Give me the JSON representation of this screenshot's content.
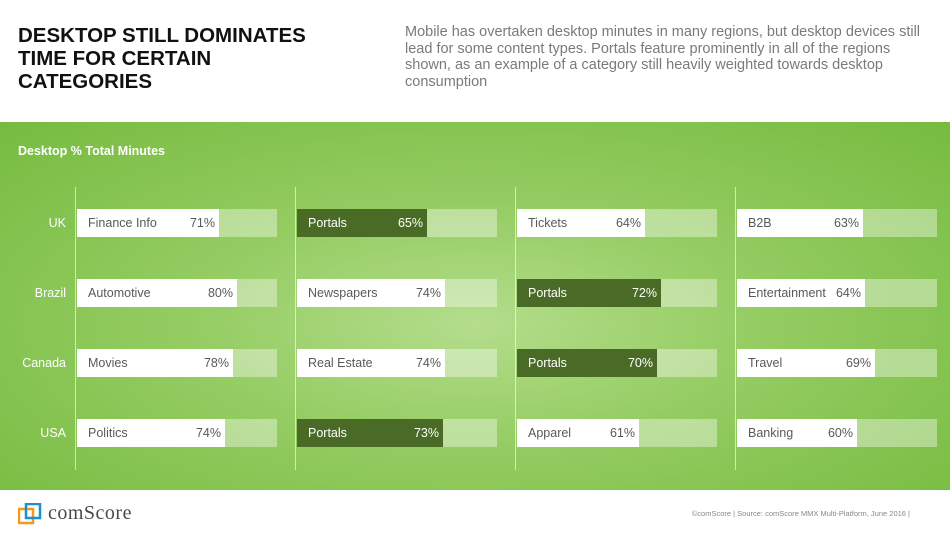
{
  "header": {
    "title": "DESKTOP STILL DOMINATES TIME FOR CERTAIN CATEGORIES",
    "subtitle": "Mobile has overtaken desktop minutes in many regions, but desktop devices still lead for some content types. Portals feature prominently in all of the regions shown, as an example of a category still heavily weighted towards desktop consumption"
  },
  "chart_data": {
    "type": "bar",
    "title": "Desktop % Total Minutes",
    "rows": [
      "UK",
      "Brazil",
      "Canada",
      "USA"
    ],
    "xlim": [
      0,
      100
    ],
    "grid": [
      [
        {
          "cat": "Finance Info",
          "value": 71,
          "label": "71%",
          "highlight": false
        },
        {
          "cat": "Portals",
          "value": 65,
          "label": "65%",
          "highlight": true
        },
        {
          "cat": "Tickets",
          "value": 64,
          "label": "64%",
          "highlight": false
        },
        {
          "cat": "B2B",
          "value": 63,
          "label": "63%",
          "highlight": false
        }
      ],
      [
        {
          "cat": "Automotive",
          "value": 80,
          "label": "80%",
          "highlight": false
        },
        {
          "cat": "Newspapers",
          "value": 74,
          "label": "74%",
          "highlight": false
        },
        {
          "cat": "Portals",
          "value": 72,
          "label": "72%",
          "highlight": true
        },
        {
          "cat": "Entertainment",
          "value": 64,
          "label": "64%",
          "highlight": false
        }
      ],
      [
        {
          "cat": "Movies",
          "value": 78,
          "label": "78%",
          "highlight": false
        },
        {
          "cat": "Real Estate",
          "value": 74,
          "label": "74%",
          "highlight": false
        },
        {
          "cat": "Portals",
          "value": 70,
          "label": "70%",
          "highlight": true
        },
        {
          "cat": "Travel",
          "value": 69,
          "label": "69%",
          "highlight": false
        }
      ],
      [
        {
          "cat": "Politics",
          "value": 74,
          "label": "74%",
          "highlight": false
        },
        {
          "cat": "Portals",
          "value": 73,
          "label": "73%",
          "highlight": true
        },
        {
          "cat": "Apparel",
          "value": 61,
          "label": "61%",
          "highlight": false
        },
        {
          "cat": "Banking",
          "value": 60,
          "label": "60%",
          "highlight": false
        }
      ]
    ],
    "colors": {
      "highlight": "#4a6b26",
      "bar": "#ffffff"
    }
  },
  "footer": {
    "logo_text": "comScore",
    "source": "©comScore  |  Source: comScore MMX Multi-Platform, June 2016  |"
  }
}
